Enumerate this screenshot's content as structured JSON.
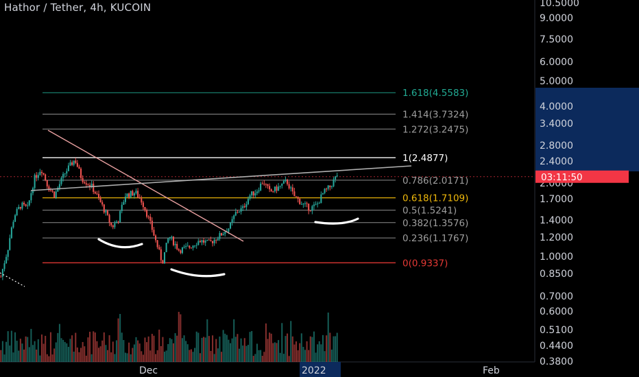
{
  "header": {
    "title": "Hathor / Tether, 4h, KUCOIN"
  },
  "price_axis": {
    "labels": [
      "10.5000",
      "9.0000",
      "7.5000",
      "6.0000",
      "5.0000",
      "4.0000",
      "3.4000",
      "2.8000",
      "2.4000",
      "2.0000",
      "1.7000",
      "1.4000",
      "1.2000",
      "1.0000",
      "0.8500",
      "0.7000",
      "0.6000",
      "0.5100",
      "0.4400",
      "0.3800"
    ],
    "current_time_label": "03:11:50",
    "current_price": 2.07
  },
  "time_axis": {
    "labels": [
      "Dec",
      "2022",
      "Feb"
    ]
  },
  "colors": {
    "background": "#000000",
    "up": "#26a69a",
    "down": "#ef5350",
    "fib_gold": "#f0b90b",
    "fib_extension": "#22ab94",
    "fib_zero": "#e53935",
    "trendline": "#e8a0a0",
    "neckline": "#b0b0b0",
    "axis_highlight": "#0c2a5c",
    "price_tag": "#f23645"
  },
  "chart_data": {
    "type": "candlestick",
    "title": "Hathor / Tether, 4h, KUCOIN",
    "y_scale": "log",
    "x_ticks": [
      "Dec",
      "2022",
      "Feb"
    ],
    "fibonacci_levels": [
      {
        "label": "1.618(4.5583)",
        "ratio": 1.618,
        "price": 4.5583,
        "color": "#22ab94"
      },
      {
        "label": "1.414(3.7324)",
        "ratio": 1.414,
        "price": 3.7324,
        "color": "#9e9e9e"
      },
      {
        "label": "1.272(3.2475)",
        "ratio": 1.272,
        "price": 3.2475,
        "color": "#9e9e9e"
      },
      {
        "label": "1(2.4877)",
        "ratio": 1,
        "price": 2.4877,
        "color": "#ffffff"
      },
      {
        "label": "0.786(2.0171)",
        "ratio": 0.786,
        "price": 2.0171,
        "color": "#9e9e9e"
      },
      {
        "label": "0.618(1.7109)",
        "ratio": 0.618,
        "price": 1.7109,
        "color": "#f0b90b"
      },
      {
        "label": "0.5(1.5241)",
        "ratio": 0.5,
        "price": 1.5241,
        "color": "#9e9e9e"
      },
      {
        "label": "0.382(1.3576)",
        "ratio": 0.382,
        "price": 1.3576,
        "color": "#9e9e9e"
      },
      {
        "label": "0.236(1.1767)",
        "ratio": 0.236,
        "price": 1.1767,
        "color": "#9e9e9e"
      },
      {
        "label": "0(0.9337)",
        "ratio": 0,
        "price": 0.9337,
        "color": "#e53935"
      }
    ],
    "price_path": [
      [
        0,
        0.82
      ],
      [
        0.02,
        1.05
      ],
      [
        0.04,
        1.45
      ],
      [
        0.06,
        1.6
      ],
      [
        0.08,
        1.55
      ],
      [
        0.1,
        2.05
      ],
      [
        0.12,
        2.25
      ],
      [
        0.14,
        1.9
      ],
      [
        0.16,
        1.75
      ],
      [
        0.19,
        2.15
      ],
      [
        0.22,
        2.45
      ],
      [
        0.24,
        2.05
      ],
      [
        0.27,
        1.9
      ],
      [
        0.3,
        1.6
      ],
      [
        0.33,
        1.3
      ],
      [
        0.35,
        1.4
      ],
      [
        0.37,
        1.75
      ],
      [
        0.4,
        1.8
      ],
      [
        0.42,
        1.65
      ],
      [
        0.44,
        1.4
      ],
      [
        0.46,
        1.15
      ],
      [
        0.48,
        0.93
      ],
      [
        0.5,
        1.2
      ],
      [
        0.53,
        1.05
      ],
      [
        0.56,
        1.08
      ],
      [
        0.59,
        1.15
      ],
      [
        0.62,
        1.12
      ],
      [
        0.65,
        1.2
      ],
      [
        0.68,
        1.3
      ],
      [
        0.7,
        1.5
      ],
      [
        0.72,
        1.55
      ],
      [
        0.74,
        1.75
      ],
      [
        0.76,
        1.82
      ],
      [
        0.78,
        2.0
      ],
      [
        0.8,
        1.8
      ],
      [
        0.83,
        1.9
      ],
      [
        0.85,
        2.0
      ],
      [
        0.87,
        1.75
      ],
      [
        0.9,
        1.6
      ],
      [
        0.92,
        1.55
      ],
      [
        0.94,
        1.6
      ],
      [
        0.96,
        1.8
      ],
      [
        0.98,
        1.9
      ],
      [
        1.0,
        2.12
      ]
    ]
  }
}
